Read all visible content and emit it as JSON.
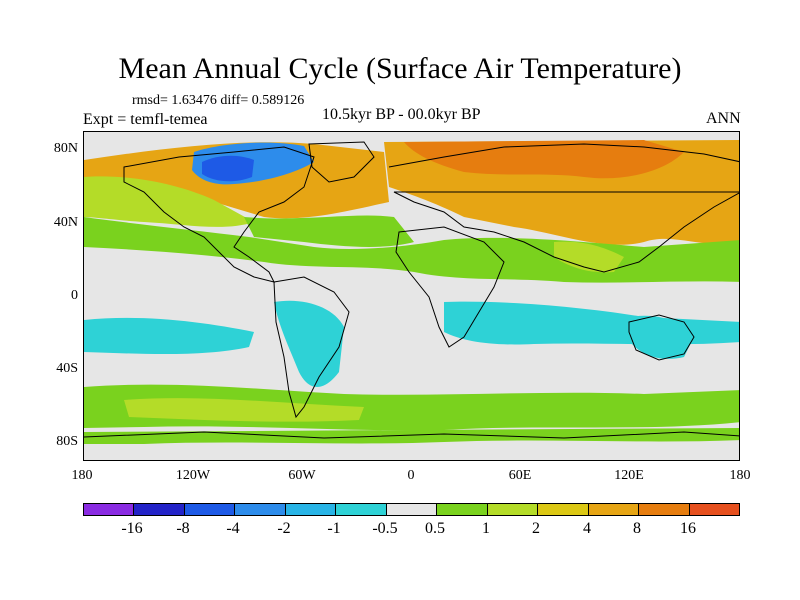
{
  "title": "Mean Annual Cycle (Surface Air Temperature)",
  "stats": "rmsd= 1.63476 diff= 0.589126",
  "experiment": "Expt = temfl-temea",
  "period": "10.5kyr BP - 00.0kyr BP",
  "season": "ANN",
  "lat_labels": [
    "80N",
    "40N",
    "0",
    "40S",
    "80S"
  ],
  "lon_labels": [
    "180",
    "120W",
    "60W",
    "0",
    "60E",
    "120E",
    "180"
  ],
  "colorbar": {
    "colors": [
      "#8a2be2",
      "#2323c8",
      "#1e5ae6",
      "#2d8ceb",
      "#28b4e6",
      "#2ed2d6",
      "#e6e6e6",
      "#7ad21e",
      "#b4dc28",
      "#dcc814",
      "#e6a514",
      "#e67d0f",
      "#e6501e"
    ],
    "labels": [
      "-16",
      "-8",
      "-4",
      "-2",
      "-1",
      "-0.5",
      "0.5",
      "1",
      "2",
      "4",
      "8",
      "16"
    ]
  }
}
